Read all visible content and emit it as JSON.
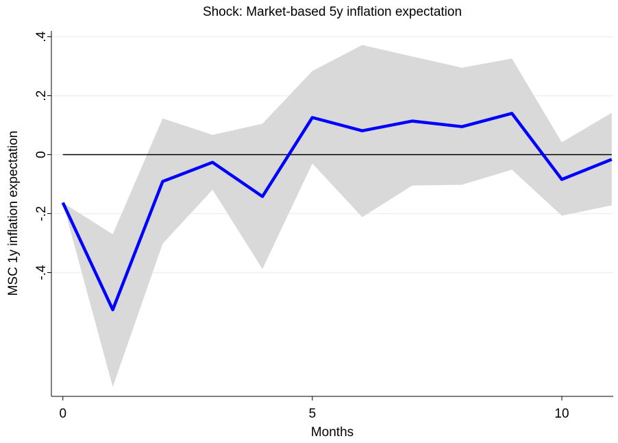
{
  "chart_data": {
    "type": "line",
    "title": "Shock: Market-based 5y inflation expectation",
    "xlabel": "Months",
    "ylabel": "MSC 1y inflation expectation",
    "x": [
      0,
      1,
      2,
      3,
      4,
      5,
      6,
      7,
      8,
      9,
      10,
      11
    ],
    "values": [
      -0.163,
      -0.526,
      -0.091,
      -0.026,
      -0.142,
      0.126,
      0.081,
      0.114,
      0.095,
      0.14,
      -0.084,
      -0.016
    ],
    "upper": [
      -0.163,
      -0.27,
      0.123,
      0.067,
      0.105,
      0.284,
      0.372,
      0.333,
      0.295,
      0.326,
      0.042,
      0.142
    ],
    "lower": [
      -0.163,
      -0.788,
      -0.302,
      -0.119,
      -0.388,
      -0.03,
      -0.212,
      -0.105,
      -0.102,
      -0.051,
      -0.207,
      -0.172
    ],
    "color": "#0000ff",
    "band_color": "#d9d9d9",
    "hline": 0,
    "xlim": [
      -0.23,
      11.03
    ],
    "ylim": [
      -0.82,
      0.42
    ],
    "xticks": [
      0,
      5,
      10
    ],
    "yticks": [
      {
        "value": -0.4,
        "label": "-.4"
      },
      {
        "value": -0.2,
        "label": "-.2"
      },
      0,
      {
        "value": 0.2,
        "label": ".2"
      },
      {
        "value": 0.4,
        "label": ".4"
      }
    ],
    "grid": true
  }
}
